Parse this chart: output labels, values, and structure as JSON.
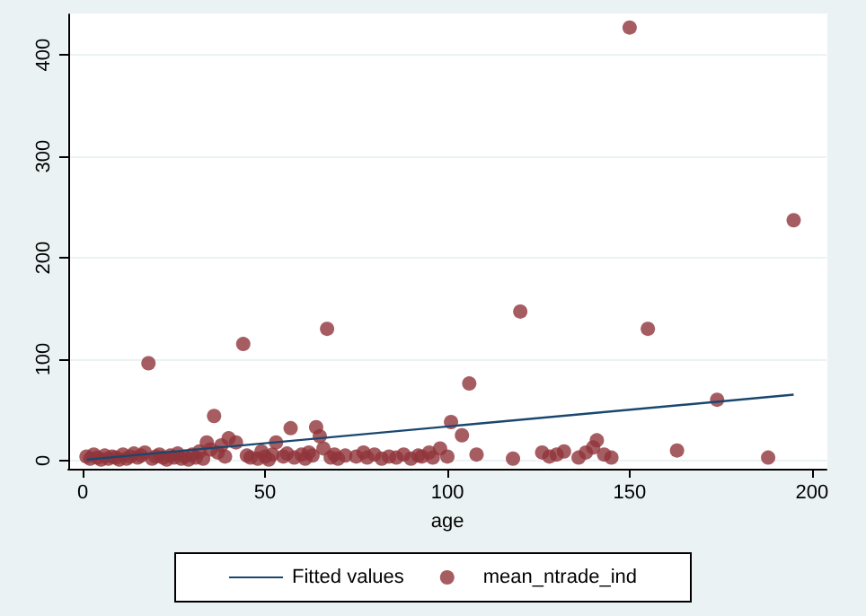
{
  "chart_data": {
    "type": "scatter",
    "xlabel": "age",
    "xlim": [
      -4,
      204
    ],
    "xticks": [
      0,
      50,
      100,
      150,
      200
    ],
    "ylim": [
      -8,
      440
    ],
    "yticks": [
      0,
      100,
      200,
      300,
      400
    ],
    "grid": "y",
    "legend": "bottom",
    "series": [
      {
        "name": "Fitted values",
        "type": "line",
        "color": "#1a476f",
        "marker": "none",
        "x": [
          1,
          195
        ],
        "values": [
          1,
          65
        ]
      },
      {
        "name": "mean_ntrade_ind",
        "color": "#90353b",
        "marker": "circle",
        "x": [
          1,
          2,
          3,
          4,
          5,
          6,
          7,
          8,
          9,
          10,
          11,
          12,
          13,
          14,
          15,
          16,
          17,
          18,
          19,
          20,
          21,
          22,
          23,
          24,
          25,
          26,
          27,
          28,
          29,
          30,
          31,
          32,
          33,
          34,
          35,
          36,
          37,
          38,
          39,
          40,
          42,
          44,
          45,
          46,
          48,
          49,
          50,
          51,
          52,
          53,
          55,
          56,
          57,
          58,
          60,
          61,
          62,
          63,
          64,
          65,
          66,
          67,
          68,
          69,
          70,
          72,
          75,
          77,
          78,
          80,
          82,
          84,
          86,
          88,
          90,
          92,
          93,
          95,
          96,
          98,
          100,
          101,
          104,
          106,
          108,
          118,
          120,
          126,
          128,
          130,
          132,
          136,
          138,
          140,
          141,
          143,
          145,
          150,
          155,
          163,
          174,
          188,
          195
        ],
        "values": [
          4,
          2,
          6,
          3,
          1,
          5,
          2,
          4,
          3,
          1,
          6,
          2,
          4,
          7,
          3,
          5,
          8,
          96,
          2,
          4,
          6,
          3,
          1,
          5,
          3,
          7,
          2,
          4,
          1,
          6,
          3,
          9,
          2,
          18,
          11,
          44,
          8,
          15,
          4,
          22,
          18,
          115,
          5,
          3,
          2,
          9,
          4,
          1,
          6,
          18,
          4,
          7,
          32,
          3,
          6,
          2,
          8,
          5,
          33,
          24,
          12,
          130,
          3,
          6,
          2,
          5,
          4,
          8,
          3,
          6,
          2,
          4,
          3,
          6,
          2,
          5,
          4,
          8,
          3,
          12,
          4,
          38,
          25,
          76,
          6,
          2,
          147,
          8,
          4,
          6,
          9,
          3,
          8,
          13,
          20,
          6,
          3,
          427,
          130,
          10,
          60,
          3,
          237
        ]
      }
    ]
  }
}
